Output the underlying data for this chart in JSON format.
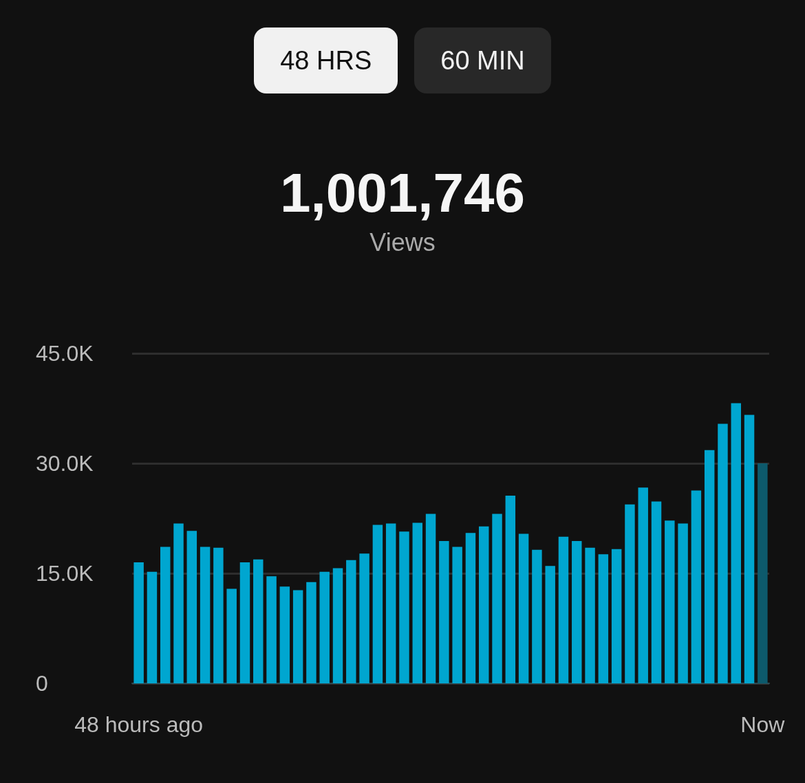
{
  "chart_data": {
    "type": "bar",
    "title": "1,001,746",
    "subtitle": "Views",
    "annotations": [
      "48 HRS",
      "60 MIN"
    ],
    "categories": [
      "48 hours ago",
      null,
      null,
      null,
      null,
      null,
      null,
      null,
      null,
      null,
      null,
      null,
      null,
      null,
      null,
      null,
      null,
      null,
      null,
      null,
      null,
      null,
      null,
      null,
      null,
      null,
      null,
      null,
      null,
      null,
      null,
      null,
      null,
      null,
      null,
      null,
      null,
      null,
      null,
      null,
      null,
      null,
      null,
      null,
      null,
      null,
      null,
      "Now"
    ],
    "values": [
      16500,
      15200,
      18600,
      21800,
      20800,
      18600,
      18500,
      12900,
      16500,
      16900,
      14600,
      13200,
      12700,
      13800,
      15200,
      15700,
      16800,
      17700,
      21600,
      21800,
      20700,
      21900,
      23100,
      19400,
      18600,
      20500,
      21400,
      23100,
      25600,
      20400,
      18200,
      16000,
      20000,
      19400,
      18500,
      17600,
      18300,
      24400,
      26700,
      24800,
      22200,
      21800,
      26300,
      31800,
      35400,
      38200,
      36600,
      30000
    ],
    "colors": [
      "#00a6d0",
      "#00a6d0",
      "#00a6d0",
      "#00a6d0",
      "#00a6d0",
      "#00a6d0",
      "#00a6d0",
      "#00a6d0",
      "#00a6d0",
      "#00a6d0",
      "#00a6d0",
      "#00a6d0",
      "#00a6d0",
      "#00a6d0",
      "#00a6d0",
      "#00a6d0",
      "#00a6d0",
      "#00a6d0",
      "#00a6d0",
      "#00a6d0",
      "#00a6d0",
      "#00a6d0",
      "#00a6d0",
      "#00a6d0",
      "#00a6d0",
      "#00a6d0",
      "#00a6d0",
      "#00a6d0",
      "#00a6d0",
      "#00a6d0",
      "#00a6d0",
      "#00a6d0",
      "#00a6d0",
      "#00a6d0",
      "#00a6d0",
      "#00a6d0",
      "#00a6d0",
      "#00a6d0",
      "#00a6d0",
      "#00a6d0",
      "#00a6d0",
      "#00a6d0",
      "#00a6d0",
      "#00a6d0",
      "#00a6d0",
      "#00a6d0",
      "#00a6d0",
      "#0d5a6c"
    ],
    "ylim": [
      0,
      45000
    ],
    "yticks": [
      0,
      {
        "value": 15000,
        "label": "15.0K"
      },
      {
        "value": 30000,
        "label": "30.0K"
      },
      {
        "value": 45000,
        "label": "45.0K"
      }
    ],
    "grid": "y"
  }
}
